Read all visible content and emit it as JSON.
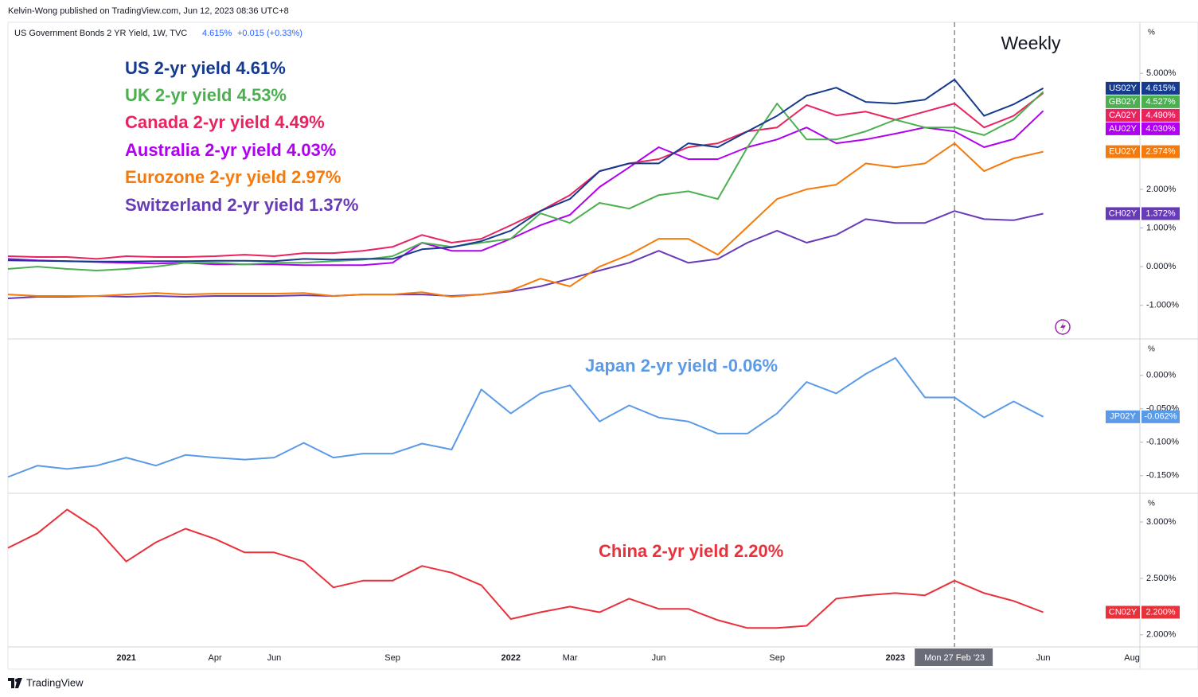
{
  "header": {
    "publisher": "Kelvin-Wong published on TradingView.com, Jun 12, 2023 08:36 UTC+8",
    "symbol": "US Government Bonds 2 YR Yield, 1W, TVC",
    "price": "4.615%",
    "change": "+0.015 (+0.33%)",
    "timeframe": "Weekly"
  },
  "chart_data": {
    "type": "line",
    "grid": false,
    "crosshair": 32,
    "categories": [
      null,
      null,
      null,
      null,
      "2021",
      null,
      null,
      "Apr",
      null,
      "Jun",
      null,
      null,
      null,
      "Sep",
      null,
      null,
      null,
      "2022",
      null,
      "Mar",
      null,
      null,
      "Jun",
      null,
      null,
      null,
      "Sep",
      null,
      null,
      null,
      "2023",
      null,
      "Mon 27 Feb '23",
      null,
      null,
      "Jun",
      null,
      null,
      "Aug"
    ],
    "panes": [
      {
        "unit": "%",
        "ylim": [
          -1.85,
          6.28
        ],
        "yticks": [
          {
            "value": -1,
            "label": "-1.000%"
          },
          {
            "value": 0,
            "label": "0.000%"
          },
          {
            "value": 1,
            "label": "1.000%"
          },
          {
            "value": 2,
            "label": "2.000%"
          },
          {
            "value": 5,
            "label": "5.000%"
          }
        ],
        "series": [
          {
            "name": "US 2-yr yield 4.61%",
            "symbol": "US02Y",
            "last_label": "4.615%",
            "color": "#163a8e",
            "values": [
              0.16,
              0.15,
              0.14,
              0.13,
              0.13,
              0.14,
              0.14,
              0.15,
              0.15,
              0.14,
              0.2,
              0.18,
              0.2,
              0.2,
              0.45,
              0.5,
              0.66,
              0.93,
              1.44,
              1.75,
              2.47,
              2.67,
              2.67,
              3.19,
              3.09,
              3.5,
              3.9,
              4.42,
              4.63,
              4.26,
              4.22,
              4.32,
              4.84,
              3.9,
              4.2,
              4.615,
              null,
              null,
              null
            ]
          },
          {
            "name": "UK 2-yr yield 4.53%",
            "symbol": "GB02Y",
            "last_label": "4.527%",
            "color": "#4caf50",
            "values": [
              -0.06,
              0,
              -0.06,
              -0.1,
              -0.06,
              0,
              0.1,
              0.1,
              0.06,
              0.1,
              0.1,
              0.14,
              0.18,
              0.27,
              0.62,
              0.51,
              0.62,
              0.72,
              1.38,
              1.13,
              1.65,
              1.5,
              1.85,
              1.95,
              1.75,
              3.09,
              4.22,
              3.29,
              3.29,
              3.5,
              3.8,
              3.6,
              3.6,
              3.4,
              3.8,
              4.527,
              null,
              null,
              null
            ]
          },
          {
            "name": "Canada 2-yr yield 4.49%",
            "symbol": "CA02Y",
            "last_label": "4.490%",
            "color": "#e8245f",
            "values": [
              0.27,
              0.25,
              0.25,
              0.2,
              0.27,
              0.25,
              0.25,
              0.27,
              0.31,
              0.27,
              0.35,
              0.35,
              0.41,
              0.51,
              0.82,
              0.62,
              0.72,
              1.07,
              1.44,
              1.85,
              2.47,
              2.67,
              2.78,
              3.09,
              3.19,
              3.5,
              3.6,
              4.18,
              3.91,
              4.01,
              3.8,
              4.01,
              4.22,
              3.6,
              3.9,
              4.49,
              null,
              null,
              null
            ]
          },
          {
            "name": "Australia  2-yr yield 4.03%",
            "symbol": "AU02Y",
            "last_label": "4.030%",
            "color": "#b000f0",
            "values": [
              0.2,
              0.16,
              0.14,
              0.12,
              0.1,
              0.08,
              0.1,
              0.06,
              0.06,
              0.06,
              0.04,
              0.04,
              0.04,
              0.1,
              0.62,
              0.41,
              0.41,
              0.72,
              1.07,
              1.34,
              2.06,
              2.57,
              3.09,
              2.78,
              2.78,
              3.09,
              3.29,
              3.6,
              3.19,
              3.29,
              3.44,
              3.6,
              3.5,
              3.09,
              3.3,
              4.03,
              null,
              null,
              null
            ]
          },
          {
            "name": "Eurozone  2-yr yield 2.97%",
            "symbol": "EU02Y",
            "last_label": "2.974%",
            "color": "#f57a0c",
            "values": [
              -0.72,
              -0.76,
              -0.76,
              -0.76,
              -0.72,
              -0.68,
              -0.72,
              -0.7,
              -0.7,
              -0.7,
              -0.68,
              -0.76,
              -0.72,
              -0.72,
              -0.66,
              -0.78,
              -0.72,
              -0.62,
              -0.31,
              -0.51,
              0,
              0.31,
              0.72,
              0.72,
              0.31,
              1.03,
              1.75,
              2.0,
              2.12,
              2.67,
              2.57,
              2.67,
              3.19,
              2.47,
              2.8,
              2.974,
              null,
              null,
              null
            ]
          },
          {
            "name": "Switzerland  2-yr yield 1.37%",
            "symbol": "CH02Y",
            "last_label": "1.372%",
            "color": "#673ab7",
            "values": [
              -0.82,
              -0.78,
              -0.78,
              -0.76,
              -0.78,
              -0.76,
              -0.78,
              -0.76,
              -0.76,
              -0.76,
              -0.74,
              -0.76,
              -0.72,
              -0.72,
              -0.72,
              -0.76,
              -0.72,
              -0.64,
              -0.51,
              -0.31,
              -0.1,
              0.1,
              0.41,
              0.1,
              0.2,
              0.62,
              0.93,
              0.62,
              0.82,
              1.23,
              1.13,
              1.13,
              1.44,
              1.23,
              1.2,
              1.372,
              null,
              null,
              null
            ]
          }
        ]
      },
      {
        "unit": "%",
        "ylim": [
          -0.174,
          0.052
        ],
        "yticks": [
          {
            "value": -0.15,
            "label": "-0.150%"
          },
          {
            "value": -0.1,
            "label": "-0.100%"
          },
          {
            "value": -0.05,
            "label": "-0.050%"
          },
          {
            "value": 0,
            "label": "0.000%"
          }
        ],
        "series": [
          {
            "name": "Japan 2-yr yield -0.06%",
            "symbol": "JP02Y",
            "last_label": "-0.062%",
            "color": "#5b9ae6",
            "values": [
              -0.152,
              -0.135,
              -0.14,
              -0.135,
              -0.123,
              -0.135,
              -0.119,
              -0.123,
              -0.126,
              -0.123,
              -0.101,
              -0.123,
              -0.117,
              -0.117,
              -0.102,
              -0.111,
              -0.021,
              -0.057,
              -0.027,
              -0.015,
              -0.069,
              -0.045,
              -0.063,
              -0.069,
              -0.087,
              -0.087,
              -0.057,
              -0.01,
              -0.027,
              0.002,
              0.026,
              -0.033,
              -0.033,
              -0.063,
              -0.039,
              -0.062,
              null,
              null,
              null
            ]
          }
        ]
      },
      {
        "unit": "%",
        "ylim": [
          1.9,
          3.24
        ],
        "yticks": [
          {
            "value": 2,
            "label": "2.000%"
          },
          {
            "value": 2.5,
            "label": "2.500%"
          },
          {
            "value": 3,
            "label": "3.000%"
          }
        ],
        "series": [
          {
            "name": "China 2-yr yield 2.20%",
            "symbol": "CN02Y",
            "last_label": "2.200%",
            "color": "#e8313b",
            "values": [
              2.77,
              2.9,
              3.11,
              2.94,
              2.65,
              2.82,
              2.94,
              2.85,
              2.73,
              2.73,
              2.65,
              2.42,
              2.48,
              2.48,
              2.61,
              2.55,
              2.44,
              2.14,
              2.2,
              2.25,
              2.2,
              2.32,
              2.23,
              2.23,
              2.13,
              2.06,
              2.06,
              2.08,
              2.32,
              2.35,
              2.37,
              2.35,
              2.48,
              2.37,
              2.3,
              2.2,
              null,
              null,
              null
            ]
          }
        ]
      }
    ]
  },
  "footer": {
    "brand": "TradingView"
  }
}
